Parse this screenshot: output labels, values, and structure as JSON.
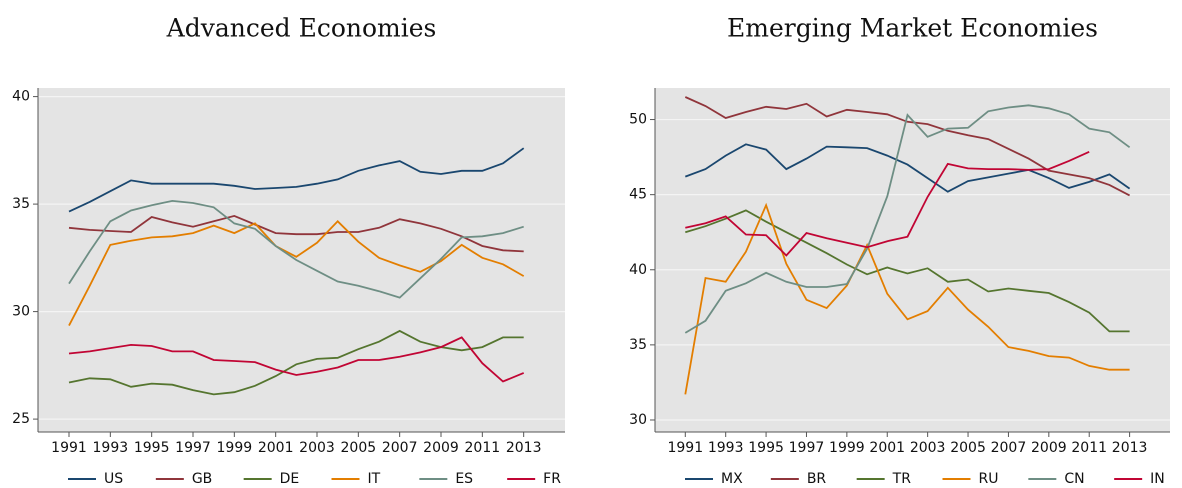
{
  "chart_data": [
    {
      "type": "line",
      "title": "Advanced Economies",
      "x": [
        1991,
        1992,
        1993,
        1994,
        1995,
        1996,
        1997,
        1998,
        1999,
        2000,
        2001,
        2002,
        2003,
        2004,
        2005,
        2006,
        2007,
        2008,
        2009,
        2010,
        2011,
        2012,
        2013
      ],
      "xlim": [
        1989.5,
        2015
      ],
      "xticks": [
        1991,
        1993,
        1995,
        1997,
        1999,
        2001,
        2003,
        2005,
        2007,
        2009,
        2011,
        2013
      ],
      "ylim": [
        24.4,
        40.4
      ],
      "yticks": [
        25,
        30,
        35,
        40
      ],
      "grid": true,
      "legend": "bottom",
      "series": [
        {
          "name": "US",
          "color": "#1a476f",
          "values": [
            34.65,
            35.1,
            35.6,
            36.1,
            35.95,
            35.95,
            35.95,
            35.95,
            35.85,
            35.7,
            35.75,
            35.8,
            35.95,
            36.15,
            36.55,
            36.8,
            37.0,
            36.5,
            36.4,
            36.55,
            36.55,
            36.9,
            37.6
          ]
        },
        {
          "name": "GB",
          "color": "#90353b",
          "values": [
            33.9,
            33.8,
            33.75,
            33.7,
            34.4,
            34.15,
            33.95,
            34.2,
            34.45,
            34.05,
            33.65,
            33.6,
            33.6,
            33.7,
            33.7,
            33.9,
            34.3,
            34.1,
            33.85,
            33.5,
            33.05,
            32.85,
            32.8
          ]
        },
        {
          "name": "DE",
          "color": "#55752f",
          "values": [
            26.7,
            26.9,
            26.85,
            26.5,
            26.65,
            26.6,
            26.35,
            26.15,
            26.25,
            26.55,
            27.0,
            27.55,
            27.8,
            27.85,
            28.25,
            28.6,
            29.1,
            28.6,
            28.35,
            28.2,
            28.35,
            28.8,
            28.8
          ]
        },
        {
          "name": "IT",
          "color": "#e37e00",
          "values": [
            29.35,
            31.2,
            33.1,
            33.3,
            33.45,
            33.5,
            33.65,
            34.0,
            33.65,
            34.1,
            33.05,
            32.55,
            33.2,
            34.2,
            33.25,
            32.5,
            32.15,
            31.85,
            32.35,
            33.1,
            32.5,
            32.2,
            31.65
          ]
        },
        {
          "name": "ES",
          "color": "#6e8e84",
          "values": [
            31.3,
            32.8,
            34.2,
            34.7,
            34.95,
            35.15,
            35.05,
            34.85,
            34.1,
            33.85,
            33.05,
            32.4,
            31.9,
            31.4,
            31.2,
            30.95,
            30.65,
            31.55,
            32.45,
            33.45,
            33.5,
            33.65,
            33.95
          ]
        },
        {
          "name": "FR",
          "color": "#c10534",
          "values": [
            28.05,
            28.15,
            28.3,
            28.45,
            28.4,
            28.15,
            28.15,
            27.75,
            27.7,
            27.65,
            27.3,
            27.05,
            27.2,
            27.4,
            27.75,
            27.75,
            27.9,
            28.1,
            28.35,
            28.8,
            27.6,
            26.75,
            27.15
          ]
        }
      ]
    },
    {
      "type": "line",
      "title": "Emerging Market Economies",
      "x": [
        1991,
        1992,
        1993,
        1994,
        1995,
        1996,
        1997,
        1998,
        1999,
        2000,
        2001,
        2002,
        2003,
        2004,
        2005,
        2006,
        2007,
        2008,
        2009,
        2010,
        2011,
        2012,
        2013
      ],
      "xlim": [
        1989.5,
        2015
      ],
      "xticks": [
        1991,
        1993,
        1995,
        1997,
        1999,
        2001,
        2003,
        2005,
        2007,
        2009,
        2011,
        2013
      ],
      "ylim": [
        29.2,
        52.1
      ],
      "yticks": [
        30,
        35,
        40,
        45,
        50
      ],
      "grid": true,
      "legend": "bottom",
      "series": [
        {
          "name": "MX",
          "color": "#1a476f",
          "values": [
            46.2,
            46.7,
            47.6,
            48.35,
            48.0,
            46.7,
            47.4,
            48.2,
            48.15,
            48.1,
            47.6,
            47.0,
            46.1,
            45.2,
            45.9,
            46.15,
            46.4,
            46.65,
            46.1,
            45.45,
            45.85,
            46.35,
            45.4
          ]
        },
        {
          "name": "BR",
          "color": "#90353b",
          "values": [
            51.5,
            50.9,
            50.1,
            50.5,
            50.85,
            50.7,
            51.05,
            50.2,
            50.65,
            50.5,
            50.35,
            49.85,
            49.7,
            49.25,
            48.95,
            48.7,
            48.05,
            47.4,
            46.6,
            46.35,
            46.1,
            45.65,
            44.95
          ]
        },
        {
          "name": "TR",
          "color": "#55752f",
          "values": [
            42.5,
            42.9,
            43.4,
            43.95,
            43.2,
            42.5,
            41.8,
            41.1,
            40.35,
            39.7,
            40.15,
            39.75,
            40.1,
            39.2,
            39.35,
            38.55,
            38.75,
            38.6,
            38.45,
            37.85,
            37.15,
            35.9,
            35.9
          ]
        },
        {
          "name": "RU",
          "color": "#e37e00",
          "values": [
            31.7,
            39.45,
            39.2,
            41.2,
            44.3,
            40.4,
            38.0,
            37.45,
            38.95,
            41.65,
            38.4,
            36.7,
            37.25,
            38.8,
            37.35,
            36.2,
            34.85,
            34.6,
            34.25,
            34.15,
            33.6,
            33.35,
            33.35
          ]
        },
        {
          "name": "CN",
          "color": "#6e8e84",
          "values": [
            35.8,
            36.6,
            38.6,
            39.1,
            39.8,
            39.2,
            38.85,
            38.85,
            39.05,
            41.4,
            44.9,
            50.3,
            48.85,
            49.4,
            49.45,
            50.55,
            50.8,
            50.95,
            50.75,
            50.35,
            49.4,
            49.15,
            48.15
          ]
        },
        {
          "name": "IN",
          "color": "#c10534",
          "values": [
            42.8,
            43.1,
            43.55,
            42.35,
            42.3,
            40.95,
            42.45,
            42.1,
            41.8,
            41.5,
            41.9,
            42.2,
            44.85,
            47.05,
            46.75,
            46.7,
            46.7,
            46.65,
            46.7,
            47.25,
            47.85,
            null,
            null
          ]
        }
      ]
    }
  ]
}
